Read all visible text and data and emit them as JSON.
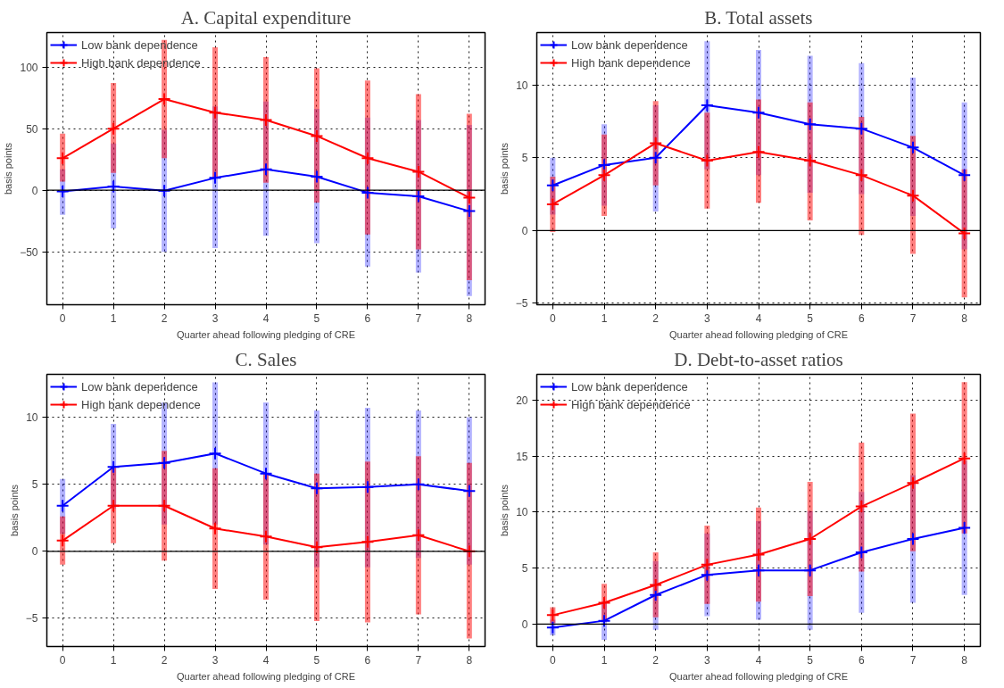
{
  "chart_data": [
    {
      "type": "line",
      "title": "A. Capital expenditure",
      "xlabel": "Quarter ahead following pledging of CRE",
      "ylabel": "basis points",
      "x": [
        0,
        1,
        2,
        3,
        4,
        5,
        6,
        7,
        8
      ],
      "xlim": [
        -0.31,
        8.31
      ],
      "xticks": [
        0,
        1,
        2,
        3,
        4,
        5,
        6,
        7,
        8
      ],
      "ylim": [
        -93,
        128
      ],
      "yticks": [
        -50,
        0,
        50,
        100
      ],
      "grid": true,
      "legend": "top left",
      "marker": "cross",
      "line_style": "solid",
      "ref_lines": [
        {
          "axis": "y",
          "value": 0,
          "color": "#000000"
        }
      ],
      "series": [
        {
          "name": "Low bank dependence",
          "color": "#0000ff",
          "values": [
            -1,
            3,
            -0.5,
            10,
            17,
            11,
            -2,
            -5,
            -17
          ],
          "errors": [
            [
              -20,
              17
            ],
            [
              -31,
              38
            ],
            [
              -50,
              49
            ],
            [
              -47,
              68
            ],
            [
              -37,
              72
            ],
            [
              -43,
              66
            ],
            [
              -62,
              59
            ],
            [
              -67,
              57
            ],
            [
              -86,
              53
            ]
          ]
        },
        {
          "name": "High bank dependence",
          "color": "#ff0000",
          "values": [
            26,
            50,
            74,
            63,
            57,
            44,
            26,
            15,
            -6
          ],
          "errors": [
            [
              7,
              46
            ],
            [
              14,
              87
            ],
            [
              26,
              122
            ],
            [
              10,
              116
            ],
            [
              6,
              108
            ],
            [
              -10,
              99
            ],
            [
              -36,
              89
            ],
            [
              -48,
              78
            ],
            [
              -73,
              62
            ]
          ]
        }
      ]
    },
    {
      "type": "line",
      "title": "B. Total assets",
      "xlabel": "Quarter ahead following pledging of CRE",
      "ylabel": "basis points",
      "x": [
        0,
        1,
        2,
        3,
        4,
        5,
        6,
        7,
        8
      ],
      "xlim": [
        -0.31,
        8.31
      ],
      "xticks": [
        0,
        1,
        2,
        3,
        4,
        5,
        6,
        7,
        8
      ],
      "ylim": [
        -5.1,
        13.6
      ],
      "yticks": [
        -5,
        0,
        5,
        10
      ],
      "grid": true,
      "legend": "top left",
      "marker": "cross",
      "line_style": "solid",
      "ref_lines": [
        {
          "axis": "y",
          "value": 0,
          "color": "#000000"
        }
      ],
      "series": [
        {
          "name": "Low bank dependence",
          "color": "#0000ff",
          "values": [
            3.1,
            4.5,
            5.0,
            8.6,
            8.1,
            7.3,
            7.0,
            5.7,
            3.8
          ],
          "errors": [
            [
              1.1,
              5.0
            ],
            [
              1.7,
              7.3
            ],
            [
              1.3,
              8.6
            ],
            [
              4.2,
              13.0
            ],
            [
              3.8,
              12.4
            ],
            [
              2.6,
              12.0
            ],
            [
              2.5,
              11.5
            ],
            [
              1.0,
              10.5
            ],
            [
              -1.3,
              8.8
            ]
          ]
        },
        {
          "name": "High bank dependence",
          "color": "#ff0000",
          "values": [
            1.8,
            3.8,
            6.0,
            4.8,
            5.4,
            4.8,
            3.8,
            2.4,
            -0.2
          ],
          "errors": [
            [
              -0.1,
              3.7
            ],
            [
              1.0,
              6.6
            ],
            [
              3.1,
              8.9
            ],
            [
              1.5,
              8.1
            ],
            [
              1.9,
              9.0
            ],
            [
              0.7,
              8.8
            ],
            [
              -0.3,
              7.8
            ],
            [
              -1.6,
              6.5
            ],
            [
              -4.6,
              4.2
            ]
          ]
        }
      ]
    },
    {
      "type": "line",
      "title": "C. Sales",
      "xlabel": "Quarter ahead following pledging of CRE",
      "ylabel": "basis points",
      "x": [
        0,
        1,
        2,
        3,
        4,
        5,
        6,
        7,
        8
      ],
      "xlim": [
        -0.31,
        8.31
      ],
      "xticks": [
        0,
        1,
        2,
        3,
        4,
        5,
        6,
        7,
        8
      ],
      "ylim": [
        -7.1,
        13.2
      ],
      "yticks": [
        -5,
        0,
        5,
        10
      ],
      "grid": true,
      "legend": "top left",
      "marker": "cross",
      "line_style": "solid",
      "ref_lines": [
        {
          "axis": "y",
          "value": 0,
          "color": "#000000"
        }
      ],
      "series": [
        {
          "name": "Low bank dependence",
          "color": "#0000ff",
          "values": [
            3.4,
            6.3,
            6.6,
            7.3,
            5.8,
            4.7,
            4.8,
            5.0,
            4.5
          ],
          "errors": [
            [
              1.3,
              5.4
            ],
            [
              3.2,
              9.5
            ],
            [
              2.0,
              11.1
            ],
            [
              2.0,
              12.6
            ],
            [
              0.5,
              11.1
            ],
            [
              -1.2,
              10.5
            ],
            [
              -1.2,
              10.7
            ],
            [
              -0.5,
              10.5
            ],
            [
              -1.0,
              10.0
            ]
          ]
        },
        {
          "name": "High bank dependence",
          "color": "#ff0000",
          "values": [
            0.8,
            3.4,
            3.4,
            1.7,
            1.1,
            0.3,
            0.7,
            1.2,
            0.0
          ],
          "errors": [
            [
              -1.0,
              2.6
            ],
            [
              0.6,
              6.3
            ],
            [
              -0.7,
              7.5
            ],
            [
              -2.8,
              6.2
            ],
            [
              -3.6,
              5.8
            ],
            [
              -5.2,
              5.8
            ],
            [
              -5.3,
              6.7
            ],
            [
              -4.7,
              7.1
            ],
            [
              -6.5,
              6.6
            ]
          ]
        }
      ]
    },
    {
      "type": "line",
      "title": "D. Debt-to-asset ratios",
      "xlabel": "Quarter ahead following pledging of CRE",
      "ylabel": "basis points",
      "x": [
        0,
        1,
        2,
        3,
        4,
        5,
        6,
        7,
        8
      ],
      "xlim": [
        -0.31,
        8.31
      ],
      "xticks": [
        0,
        1,
        2,
        3,
        4,
        5,
        6,
        7,
        8
      ],
      "ylim": [
        -2.0,
        22.3
      ],
      "yticks": [
        0,
        5,
        10,
        15,
        20
      ],
      "grid": true,
      "legend": "top left",
      "marker": "cross",
      "line_style": "solid",
      "ref_lines": [
        {
          "axis": "y",
          "value": 0,
          "color": "#000000"
        }
      ],
      "series": [
        {
          "name": "Low bank dependence",
          "color": "#0000ff",
          "values": [
            -0.3,
            0.3,
            2.6,
            4.4,
            4.8,
            4.8,
            6.4,
            7.6,
            8.6
          ],
          "errors": [
            [
              -1.0,
              0.4
            ],
            [
              -1.4,
              2.0
            ],
            [
              -0.5,
              5.6
            ],
            [
              0.7,
              8.1
            ],
            [
              0.4,
              9.2
            ],
            [
              -0.5,
              10.1
            ],
            [
              1.0,
              11.8
            ],
            [
              1.9,
              13.3
            ],
            [
              2.6,
              14.6
            ]
          ]
        },
        {
          "name": "High bank dependence",
          "color": "#ff0000",
          "values": [
            0.8,
            1.9,
            3.5,
            5.3,
            6.2,
            7.6,
            10.5,
            12.6,
            14.8
          ],
          "errors": [
            [
              0.1,
              1.5
            ],
            [
              0.2,
              3.6
            ],
            [
              0.6,
              6.4
            ],
            [
              1.8,
              8.8
            ],
            [
              2.0,
              10.4
            ],
            [
              2.5,
              12.7
            ],
            [
              4.7,
              16.2
            ],
            [
              6.5,
              18.8
            ],
            [
              8.1,
              21.6
            ]
          ]
        }
      ]
    }
  ]
}
